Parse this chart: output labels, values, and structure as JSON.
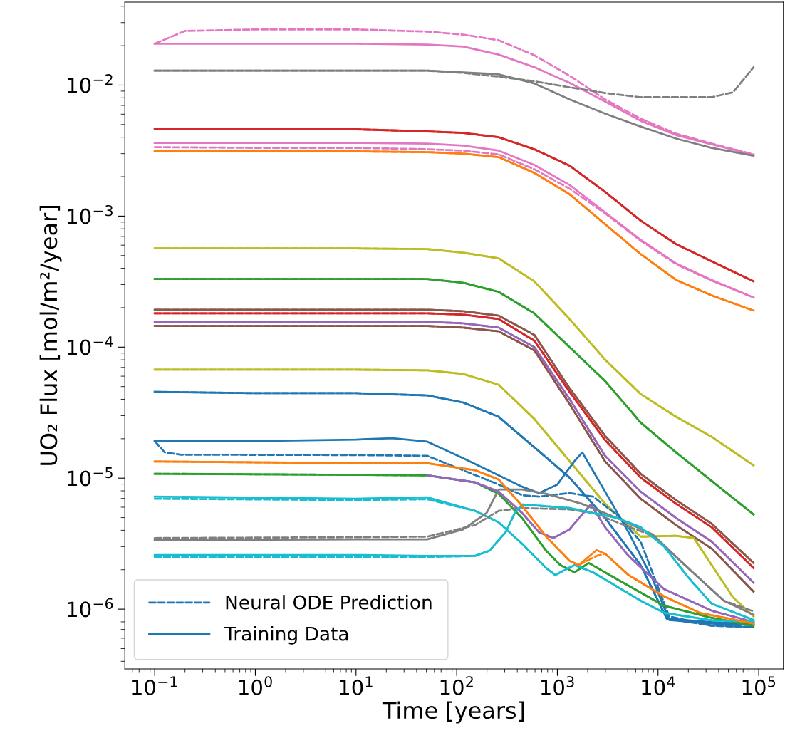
{
  "chart_data": {
    "type": "line",
    "xlabel": "Time [years]",
    "ylabel": "UO₂ Flux [mol/m²/year]",
    "log": "xy",
    "grid": false,
    "legend": "bottom left",
    "xlim": [
      0.0505,
      176000
    ],
    "ylim": [
      3.5e-07,
      0.043
    ],
    "xticks": [
      {
        "value": 0.1,
        "label": "10$^{−1}$"
      },
      {
        "value": 1,
        "label": "10$^{0}$"
      },
      {
        "value": 10,
        "label": "10$^{1}$"
      },
      {
        "value": 100,
        "label": "10$^{2}$"
      },
      {
        "value": 1000,
        "label": "10$^{3}$"
      },
      {
        "value": 10000,
        "label": "10$^{4}$"
      },
      {
        "value": 100000,
        "label": "10$^{5}$"
      }
    ],
    "yticks": [
      {
        "value": 1e-06,
        "label": "10$^{−6}$"
      },
      {
        "value": 1e-05,
        "label": "10$^{−5}$"
      },
      {
        "value": 0.0001,
        "label": "10$^{−4}$"
      },
      {
        "value": 0.001,
        "label": "10$^{−3}$"
      },
      {
        "value": 0.01,
        "label": "10$^{−2}$"
      }
    ],
    "x": [
      0.1,
      1,
      10,
      51,
      116,
      261,
      590,
      1320,
      2980,
      6710,
      15100,
      34100,
      88900
    ],
    "series": [
      {
        "color": "#e377c2",
        "line_style": "dashed",
        "x": [
          0.1,
          0.2,
          1,
          10,
          51,
          116,
          261,
          590,
          1320,
          2980,
          6710,
          15100,
          34100,
          88900
        ],
        "values": [
          0.0207,
          0.0259,
          0.0266,
          0.0266,
          0.0256,
          0.0243,
          0.022,
          0.0169,
          0.0118,
          0.00778,
          0.00555,
          0.00426,
          0.00358,
          0.00296
        ]
      },
      {
        "color": "#e377c2",
        "line_style": "solid",
        "values": [
          0.0207,
          0.0207,
          0.0207,
          0.0204,
          0.0197,
          0.0171,
          0.0137,
          0.0104,
          0.0075,
          0.00534,
          0.00416,
          0.00353,
          0.00293
        ]
      },
      {
        "color": "#7f7f7f",
        "line_style": "dashed",
        "x": [
          0.1,
          1,
          10,
          51,
          116,
          261,
          590,
          1320,
          2980,
          6710,
          15100,
          34100,
          55600,
          88900
        ],
        "values": [
          0.0129,
          0.0129,
          0.0129,
          0.0129,
          0.0124,
          0.0116,
          0.0107,
          0.00963,
          0.00871,
          0.00808,
          0.00808,
          0.00808,
          0.00882,
          0.0137
        ]
      },
      {
        "color": "#7f7f7f",
        "line_style": "solid",
        "values": [
          0.0129,
          0.0129,
          0.0129,
          0.0129,
          0.0125,
          0.0121,
          0.0103,
          0.00778,
          0.00606,
          0.00483,
          0.00391,
          0.00332,
          0.00289
        ]
      },
      {
        "color": "#d62728",
        "line_style": "dashed",
        "values": [
          0.00465,
          0.00465,
          0.0046,
          0.00443,
          0.00432,
          0.004,
          0.00324,
          0.00243,
          0.00153,
          0.000924,
          0.000611,
          0.000452,
          0.000318
        ]
      },
      {
        "color": "#d62728",
        "line_style": "solid",
        "values": [
          0.00465,
          0.00465,
          0.0046,
          0.00443,
          0.00432,
          0.004,
          0.00324,
          0.00243,
          0.00153,
          0.000924,
          0.000611,
          0.000452,
          0.000318
        ]
      },
      {
        "color": "#e377c2",
        "line_style": "dashed",
        "values": [
          0.00336,
          0.00332,
          0.00332,
          0.00324,
          0.00316,
          0.00296,
          0.00228,
          0.00162,
          0.00105,
          0.00065,
          0.00043,
          0.000322,
          0.000239
        ]
      },
      {
        "color": "#e377c2",
        "line_style": "solid",
        "values": [
          0.00362,
          0.00362,
          0.00362,
          0.00358,
          0.00345,
          0.00316,
          0.00246,
          0.00173,
          0.00107,
          0.000659,
          0.000436,
          0.000326,
          0.000239
        ]
      },
      {
        "color": "#ff7f0e",
        "line_style": "dashed",
        "values": [
          0.00312,
          0.00312,
          0.00312,
          0.00308,
          0.003,
          0.00282,
          0.00214,
          0.00147,
          0.000868,
          0.000513,
          0.000326,
          0.000248,
          0.00019
        ]
      },
      {
        "color": "#ff7f0e",
        "line_style": "solid",
        "values": [
          0.00312,
          0.00312,
          0.00312,
          0.00308,
          0.003,
          0.00282,
          0.00214,
          0.00147,
          0.000868,
          0.000513,
          0.000326,
          0.000248,
          0.00019
        ]
      },
      {
        "color": "#bcbd22",
        "line_style": "dashed",
        "values": [
          0.000567,
          0.000567,
          0.000567,
          0.00056,
          0.000526,
          0.000476,
          0.000318,
          0.000164,
          8.02e-05,
          4.39e-05,
          2.94e-05,
          2.07e-05,
          1.25e-05
        ]
      },
      {
        "color": "#bcbd22",
        "line_style": "solid",
        "values": [
          0.000567,
          0.000567,
          0.000567,
          0.00056,
          0.000526,
          0.000476,
          0.000318,
          0.000164,
          8.02e-05,
          4.39e-05,
          2.94e-05,
          2.07e-05,
          1.25e-05
        ]
      },
      {
        "color": "#2ca02c",
        "line_style": "dashed",
        "values": [
          0.000331,
          0.000331,
          0.000331,
          0.000331,
          0.00031,
          0.000264,
          0.000181,
          0.0001,
          5.51e-05,
          2.66e-05,
          1.57e-05,
          9.52e-06,
          5.28e-06
        ]
      },
      {
        "color": "#2ca02c",
        "line_style": "solid",
        "values": [
          0.000331,
          0.000331,
          0.000331,
          0.000331,
          0.00031,
          0.000264,
          0.000181,
          0.0001,
          5.51e-05,
          2.66e-05,
          1.57e-05,
          9.52e-06,
          5.28e-06
        ]
      },
      {
        "color": "#8c564b",
        "line_style": "dashed",
        "values": [
          0.000193,
          0.000193,
          0.000193,
          0.000193,
          0.000188,
          0.000174,
          0.000124,
          4.86e-05,
          2.1e-05,
          1.08e-05,
          6.79e-06,
          4.49e-06,
          2.25e-06
        ]
      },
      {
        "color": "#8c564b",
        "line_style": "solid",
        "values": [
          0.000193,
          0.000193,
          0.000193,
          0.000193,
          0.000188,
          0.000174,
          0.000124,
          4.86e-05,
          2.1e-05,
          1.08e-05,
          6.79e-06,
          4.49e-06,
          2.25e-06
        ]
      },
      {
        "color": "#d62728",
        "line_style": "dashed",
        "values": [
          0.000181,
          0.000181,
          0.000181,
          0.000181,
          0.000177,
          0.000164,
          0.000112,
          4.56e-05,
          1.95e-05,
          1.01e-05,
          6.38e-06,
          4.22e-06,
          2.06e-06
        ]
      },
      {
        "color": "#d62728",
        "line_style": "solid",
        "values": [
          0.000181,
          0.000181,
          0.000181,
          0.000181,
          0.000177,
          0.000164,
          0.000112,
          4.56e-05,
          1.95e-05,
          1.01e-05,
          6.38e-06,
          4.22e-06,
          2.06e-06
        ]
      },
      {
        "color": "#9467bd",
        "line_style": "dashed",
        "values": [
          0.000156,
          0.000156,
          0.000156,
          0.000156,
          0.000152,
          0.000141,
          0.0001,
          4.02e-05,
          1.48e-05,
          7.89e-06,
          4.96e-06,
          3.28e-06,
          1.59e-06
        ]
      },
      {
        "color": "#9467bd",
        "line_style": "solid",
        "values": [
          0.000156,
          0.000156,
          0.000156,
          0.000156,
          0.000152,
          0.000141,
          0.0001,
          4.02e-05,
          1.48e-05,
          7.89e-06,
          4.96e-06,
          3.28e-06,
          1.59e-06
        ]
      },
      {
        "color": "#8c564b",
        "line_style": "dashed",
        "values": [
          0.000145,
          0.000145,
          0.000145,
          0.000145,
          0.000141,
          0.000132,
          9.44e-05,
          3.69e-05,
          1.34e-05,
          6.96e-06,
          4.38e-06,
          2.9e-06,
          1.36e-06
        ]
      },
      {
        "color": "#8c564b",
        "line_style": "solid",
        "values": [
          0.000145,
          0.000145,
          0.000145,
          0.000145,
          0.000141,
          0.000132,
          9.44e-05,
          3.69e-05,
          1.34e-05,
          6.96e-06,
          4.38e-06,
          2.9e-06,
          1.36e-06
        ]
      },
      {
        "color": "#bcbd22",
        "line_style": "dashed",
        "x": [
          0.1,
          1,
          10,
          51,
          116,
          261,
          590,
          1320,
          2980,
          6710,
          15100,
          22700,
          34100,
          55600,
          88900
        ],
        "values": [
          6.73e-05,
          6.73e-05,
          6.73e-05,
          6.65e-05,
          6.24e-05,
          5.17e-05,
          2.83e-05,
          1.35e-05,
          6.38e-06,
          3.58e-06,
          3.63e-06,
          3.49e-06,
          2.17e-06,
          1.23e-06,
          8.8e-07
        ]
      },
      {
        "color": "#bcbd22",
        "line_style": "solid",
        "x": [
          0.1,
          1,
          10,
          51,
          116,
          261,
          590,
          1320,
          2980,
          6710,
          15100,
          22700,
          34100,
          55600,
          88900
        ],
        "values": [
          6.73e-05,
          6.73e-05,
          6.73e-05,
          6.65e-05,
          6.24e-05,
          5.17e-05,
          2.83e-05,
          1.35e-05,
          6.38e-06,
          3.58e-06,
          3.63e-06,
          3.49e-06,
          2.17e-06,
          1.23e-06,
          8.8e-07
        ]
      },
      {
        "name": "Neural ODE Prediction",
        "color": "#1f77b4",
        "line_style": "dashed",
        "x": [
          0.1,
          1,
          10,
          51,
          116,
          261,
          590,
          1320,
          2980,
          6710,
          12200,
          34100,
          88900
        ],
        "values": [
          4.56e-05,
          4.45e-05,
          4.45e-05,
          4.28e-05,
          3.78e-05,
          2.94e-05,
          1.72e-05,
          1.01e-05,
          4.96e-06,
          2.17e-06,
          8.48e-07,
          7.48e-07,
          7.29e-07
        ]
      },
      {
        "name": "Training Data",
        "color": "#1f77b4",
        "line_style": "solid",
        "x": [
          0.1,
          1,
          10,
          51,
          116,
          261,
          590,
          1320,
          2980,
          6710,
          12200,
          34100,
          88900
        ],
        "values": [
          4.56e-05,
          4.45e-05,
          4.45e-05,
          4.28e-05,
          3.78e-05,
          2.94e-05,
          1.72e-05,
          1.01e-05,
          4.96e-06,
          2.17e-06,
          8.48e-07,
          7.96e-07,
          7.67e-07
        ]
      },
      {
        "color": "#1f77b4",
        "line_style": "dashed",
        "x": [
          0.1,
          0.126,
          0.182,
          10,
          51,
          261,
          446,
          658,
          1320,
          2260,
          3930,
          6710,
          12900,
          34100,
          88900
        ],
        "values": [
          1.92e-05,
          1.57e-05,
          1.51e-05,
          1.5e-05,
          1.48e-05,
          8.94e-06,
          7.41e-06,
          7.23e-06,
          7.69e-06,
          7.23e-06,
          5.22e-06,
          3.28e-06,
          8.8e-07,
          7.48e-07,
          7.29e-07
        ]
      },
      {
        "color": "#1f77b4",
        "line_style": "solid",
        "x": [
          0.1,
          1,
          10,
          23,
          51,
          116,
          261,
          446,
          658,
          1000,
          1480,
          1770,
          2980,
          5090,
          8850,
          12900,
          34100,
          88900
        ],
        "values": [
          1.92e-05,
          1.92e-05,
          1.97e-05,
          2.02e-05,
          1.9e-05,
          1.42e-05,
          1.05e-05,
          8.61e-06,
          7.69e-06,
          8.94e-06,
          1.35e-05,
          1.57e-05,
          7.89e-06,
          3.86e-06,
          1.69e-06,
          8.26e-07,
          7.76e-07,
          7.57e-07
        ]
      },
      {
        "color": "#2ca02c",
        "line_style": "dashed",
        "x": [
          0.1,
          10,
          51,
          152,
          261,
          446,
          774,
          1070,
          1480,
          2050,
          3930,
          11500,
          34100,
          88900
        ],
        "values": [
          1.08e-05,
          1.06e-05,
          1.05e-05,
          9.29e-06,
          7.6e-06,
          4.96e-06,
          2.79e-06,
          2.17e-06,
          1.91e-06,
          2.25e-06,
          1.69e-06,
          1.06e-06,
          8.58e-07,
          7.48e-07
        ]
      },
      {
        "color": "#2ca02c",
        "line_style": "solid",
        "x": [
          0.1,
          10,
          51,
          152,
          261,
          446,
          774,
          1070,
          1480,
          2050,
          3930,
          11500,
          34100,
          88900
        ],
        "values": [
          1.08e-05,
          1.06e-05,
          1.05e-05,
          9.29e-06,
          7.6e-06,
          4.96e-06,
          2.79e-06,
          2.17e-06,
          1.91e-06,
          2.25e-06,
          1.69e-06,
          1.06e-06,
          8.58e-07,
          7.48e-07
        ]
      },
      {
        "color": "#9467bd",
        "line_style": "dashed",
        "x": [
          51,
          152,
          261,
          446,
          658,
          910,
          1320,
          1740,
          2150,
          2980,
          5090,
          11500,
          34100,
          88900
        ],
        "values": [
          1.05e-05,
          9.29e-06,
          7.89e-06,
          5.42e-06,
          3.86e-06,
          3.49e-06,
          4.06e-06,
          5.22e-06,
          6.3e-06,
          4.22e-06,
          2.55e-06,
          1.42e-06,
          9.73e-07,
          7.96e-07
        ]
      },
      {
        "color": "#9467bd",
        "line_style": "solid",
        "x": [
          51,
          152,
          261,
          446,
          658,
          910,
          1320,
          1740,
          2150,
          2980,
          5090,
          11500,
          34100,
          88900
        ],
        "values": [
          1.05e-05,
          9.29e-06,
          7.89e-06,
          5.42e-06,
          3.86e-06,
          3.49e-06,
          4.06e-06,
          5.22e-06,
          6.3e-06,
          4.22e-06,
          2.55e-06,
          1.42e-06,
          9.73e-07,
          7.96e-07
        ]
      },
      {
        "color": "#17becf",
        "line_style": "dashed",
        "x": [
          0.1,
          10,
          51,
          152,
          261,
          446,
          774,
          955,
          1180,
          1480,
          2260,
          6710,
          11500,
          34100,
          88900
        ],
        "values": [
          6.96e-06,
          6.8e-06,
          6.9e-06,
          5.63e-06,
          4.6e-06,
          3.16e-06,
          2.06e-06,
          1.82e-06,
          1.99e-06,
          2.17e-06,
          1.91e-06,
          1.16e-06,
          9.37e-07,
          8.2e-07,
          8.06e-07
        ]
      },
      {
        "color": "#17becf",
        "line_style": "solid",
        "x": [
          0.1,
          10,
          51,
          152,
          261,
          446,
          774,
          955,
          1180,
          1480,
          2260,
          6710,
          11500,
          34100,
          88900
        ],
        "values": [
          7.23e-06,
          6.96e-06,
          7.14e-06,
          5.63e-06,
          4.6e-06,
          3.16e-06,
          2.06e-06,
          1.82e-06,
          1.99e-06,
          2.17e-06,
          1.91e-06,
          1.16e-06,
          9.37e-07,
          8.2e-07,
          8.06e-07
        ]
      },
      {
        "color": "#7f7f7f",
        "line_style": "dashed",
        "x": [
          0.1,
          10,
          51,
          152,
          261,
          446,
          1320,
          2260,
          3930,
          8850,
          19900,
          45000,
          88900
        ],
        "values": [
          3.49e-06,
          3.54e-06,
          3.58e-06,
          4.38e-06,
          5.63e-06,
          5.91e-06,
          5.77e-06,
          5.42e-06,
          4.6e-06,
          3.63e-06,
          2.06e-06,
          1.16e-06,
          9.61e-07
        ]
      },
      {
        "color": "#7f7f7f",
        "line_style": "solid",
        "x": [
          0.1,
          10,
          51,
          116,
          198,
          261,
          446,
          774,
          1740,
          3930,
          8850,
          19900,
          45000,
          88900
        ],
        "values": [
          3.36e-06,
          3.41e-06,
          3.41e-06,
          4.06e-06,
          5.42e-06,
          8.19e-06,
          8.19e-06,
          7.6e-06,
          6.38e-06,
          4.96e-06,
          3.72e-06,
          2.06e-06,
          1.16e-06,
          9.03e-07
        ]
      },
      {
        "color": "#17becf",
        "line_style": "dashed",
        "x": [
          0.1,
          10,
          51,
          152,
          211,
          306,
          378,
          446,
          1320,
          3930,
          6710,
          11500,
          19900,
          34100,
          88900
        ],
        "values": [
          2.5e-06,
          2.5e-06,
          2.5e-06,
          2.55e-06,
          2.79e-06,
          3.86e-06,
          5.42e-06,
          6.3e-06,
          5.91e-06,
          4.96e-06,
          4.22e-06,
          3.01e-06,
          1.75e-06,
          1.1e-06,
          8.26e-07
        ]
      },
      {
        "color": "#17becf",
        "line_style": "solid",
        "x": [
          0.1,
          10,
          51,
          152,
          211,
          306,
          378,
          446,
          1320,
          3930,
          6710,
          11500,
          19900,
          34100,
          88900
        ],
        "values": [
          2.59e-06,
          2.59e-06,
          2.55e-06,
          2.55e-06,
          2.79e-06,
          3.86e-06,
          5.42e-06,
          6.3e-06,
          5.91e-06,
          4.96e-06,
          4.22e-06,
          3.01e-06,
          1.75e-06,
          1.1e-06,
          8.26e-07
        ]
      },
      {
        "color": "#ff7f0e",
        "line_style": "dashed",
        "x": [
          0.1,
          10,
          51,
          152,
          261,
          446,
          774,
          1320,
          1630,
          2450,
          2980,
          5090,
          11500,
          25900,
          88900
        ],
        "values": [
          1.34e-05,
          1.3e-05,
          1.3e-05,
          1.15e-05,
          9.76e-06,
          6.14e-06,
          3.58e-06,
          2.34e-06,
          2.17e-06,
          2.55e-06,
          2.65e-06,
          1.82e-06,
          1.25e-06,
          9.37e-07,
          7.76e-07
        ]
      },
      {
        "color": "#ff7f0e",
        "line_style": "solid",
        "x": [
          0.1,
          10,
          51,
          152,
          261,
          446,
          774,
          1320,
          1630,
          2450,
          2980,
          5090,
          11500,
          25900,
          88900
        ],
        "values": [
          1.34e-05,
          1.3e-05,
          1.3e-05,
          1.15e-05,
          9.76e-06,
          6.14e-06,
          3.58e-06,
          2.34e-06,
          2.17e-06,
          2.82e-06,
          2.65e-06,
          1.82e-06,
          1.25e-06,
          9.37e-07,
          7.76e-07
        ]
      }
    ]
  }
}
